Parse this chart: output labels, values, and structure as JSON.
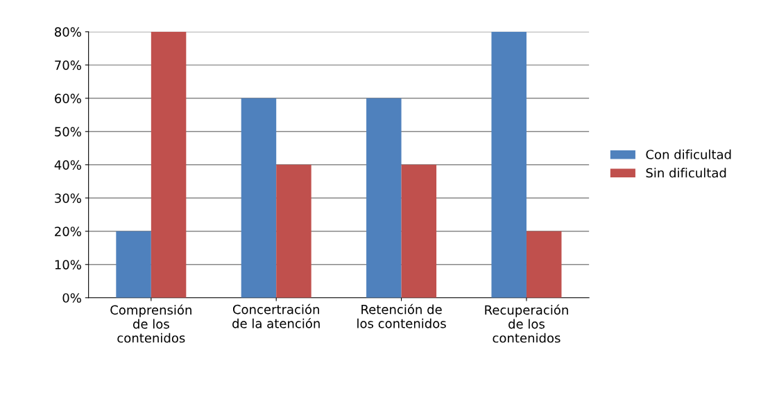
{
  "chart_data": {
    "type": "bar",
    "categories": [
      "Comprensión\nde los\ncontenidos",
      "Concertración\nde la atención",
      "Retención de\nlos contenidos",
      "Recuperación\nde los\ncontenidos"
    ],
    "series": [
      {
        "name": "Con dificultad",
        "color": "#4f81bd",
        "values": [
          20,
          60,
          60,
          80
        ]
      },
      {
        "name": "Sin dificultad",
        "color": "#c0504d",
        "values": [
          80,
          40,
          40,
          20
        ]
      }
    ],
    "ylim": [
      0,
      80
    ],
    "yticks": [
      {
        "value": 0,
        "label": "0%"
      },
      {
        "value": 10,
        "label": "10%"
      },
      {
        "value": 20,
        "label": "20%"
      },
      {
        "value": 30,
        "label": "30%"
      },
      {
        "value": 40,
        "label": "40%"
      },
      {
        "value": 50,
        "label": "50%"
      },
      {
        "value": 60,
        "label": "60%"
      },
      {
        "value": 70,
        "label": "70%"
      },
      {
        "value": 80,
        "label": "80%"
      }
    ],
    "grid": "y",
    "legend": "right"
  }
}
